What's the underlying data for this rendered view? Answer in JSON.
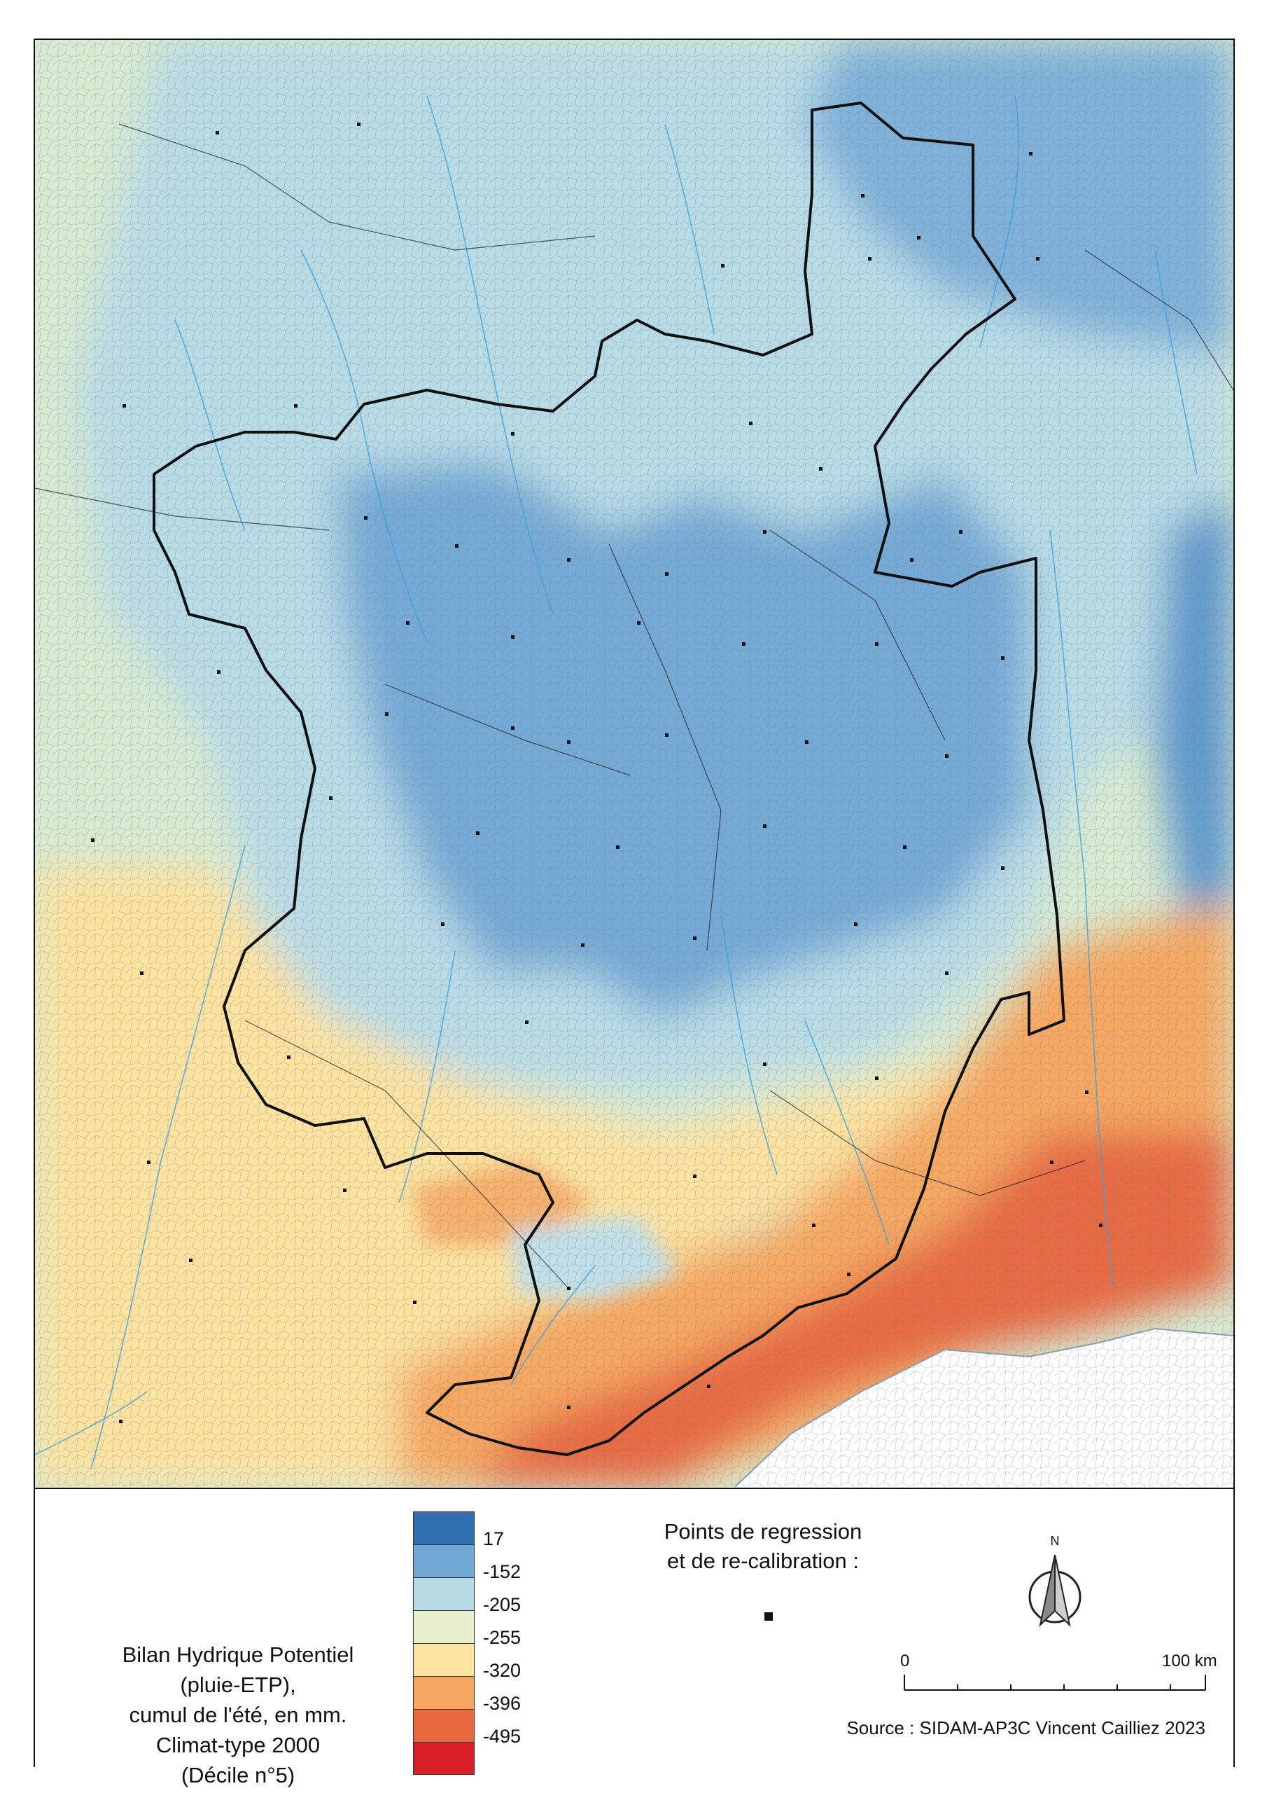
{
  "legend": {
    "title_lines": [
      "Bilan Hydrique Potentiel",
      "(pluie-ETP),",
      "cumul de l'été, en mm.",
      "Climat-type 2000",
      "(Décile n°5)"
    ],
    "classes": [
      {
        "label": "17",
        "color": "#2f6fb0"
      },
      {
        "label": "-152",
        "color": "#72a8d5"
      },
      {
        "label": "-205",
        "color": "#b7dae5"
      },
      {
        "label": "-255",
        "color": "#e6f0cd"
      },
      {
        "label": "-320",
        "color": "#fde4a3"
      },
      {
        "label": "-396",
        "color": "#f5a55f"
      },
      {
        "label": "-495",
        "color": "#e86840"
      },
      {
        "label": "",
        "color": "#d91f26"
      }
    ],
    "points_title_lines": [
      "Points de regression",
      "et de re-calibration :"
    ]
  },
  "north_arrow": {
    "label": "N"
  },
  "scalebar": {
    "start_label": "0",
    "end_label": "100 km"
  },
  "source": "Source : SIDAM-AP3C Vincent Cailliez 2023"
}
